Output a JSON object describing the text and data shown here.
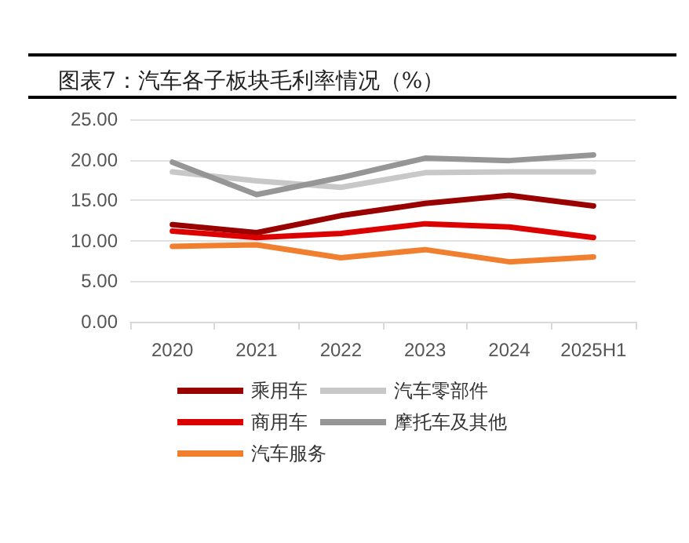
{
  "chart_data": {
    "type": "line",
    "title": "图表7：汽车各子板块毛利率情况（%）",
    "categories": [
      "2020",
      "2021",
      "2022",
      "2023",
      "2024",
      "2025H1"
    ],
    "series": [
      {
        "name": "乘用车",
        "color": "#990000",
        "values": [
          12.0,
          11.0,
          13.1,
          14.6,
          15.6,
          14.3
        ]
      },
      {
        "name": "汽车零部件",
        "color": "#c8c8c8",
        "values": [
          18.5,
          17.4,
          16.6,
          18.4,
          18.5,
          18.5
        ]
      },
      {
        "name": "商用车",
        "color": "#dd0000",
        "values": [
          11.2,
          10.4,
          10.9,
          12.1,
          11.7,
          10.4
        ]
      },
      {
        "name": "摩托车及其他",
        "color": "#969696",
        "values": [
          19.7,
          15.7,
          17.8,
          20.2,
          19.9,
          20.6
        ]
      },
      {
        "name": "汽车服务",
        "color": "#f08030",
        "values": [
          9.3,
          9.5,
          7.9,
          8.9,
          7.4,
          8.0
        ]
      }
    ],
    "ylim": [
      0,
      25
    ],
    "yticks": [
      {
        "value": 0,
        "label": "0.00"
      },
      {
        "value": 5,
        "label": "5.00"
      },
      {
        "value": 10,
        "label": "10.00"
      },
      {
        "value": 15,
        "label": "15.00"
      },
      {
        "value": 20,
        "label": "20.00"
      },
      {
        "value": 25,
        "label": "25.00"
      }
    ],
    "grid": "y",
    "legend": "bottom",
    "marker": "none",
    "line_style": "solid"
  }
}
